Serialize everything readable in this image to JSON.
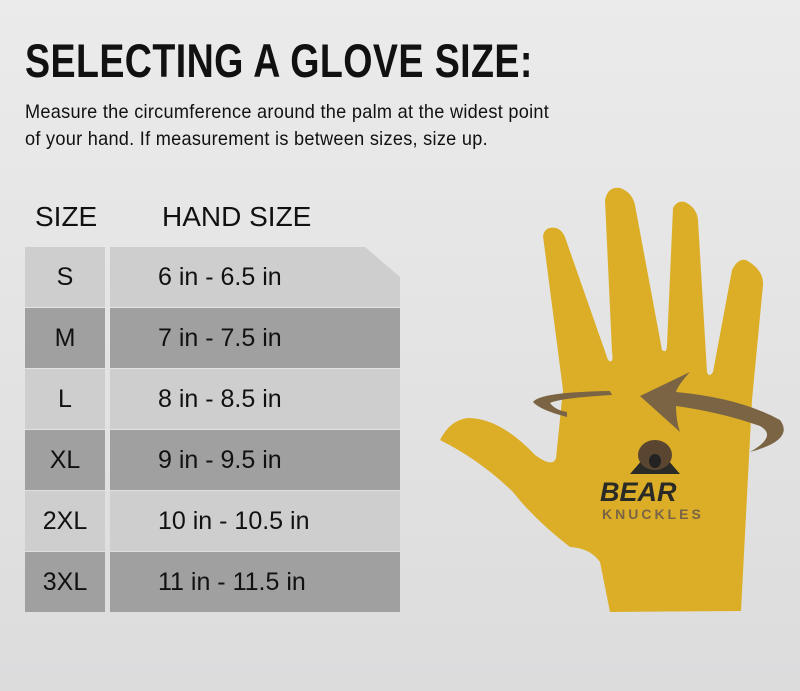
{
  "title": "SELECTING A GLOVE SIZE:",
  "description": [
    "Measure the circumference around the palm at the widest point",
    "of your hand. If measurement is between sizes, size up."
  ],
  "table": {
    "headers": {
      "size": "SIZE",
      "hand_size": "HAND SIZE"
    },
    "rows": [
      {
        "size": "S",
        "hand_size": "6 in - 6.5 in"
      },
      {
        "size": "M",
        "hand_size": "7 in - 7.5 in"
      },
      {
        "size": "L",
        "hand_size": "8 in - 8.5 in"
      },
      {
        "size": "XL",
        "hand_size": "9 in - 9.5 in"
      },
      {
        "size": "2XL",
        "hand_size": "10 in - 10.5 in"
      },
      {
        "size": "3XL",
        "hand_size": "11 in - 11.5 in"
      }
    ]
  },
  "logo": {
    "line1": "BEAR",
    "line2": "KNUCKLES"
  },
  "colors": {
    "hand": "#dcae27",
    "arrow": "#7a6444",
    "row_light": "#cdcecd",
    "row_dark": "#a0a0a0"
  }
}
